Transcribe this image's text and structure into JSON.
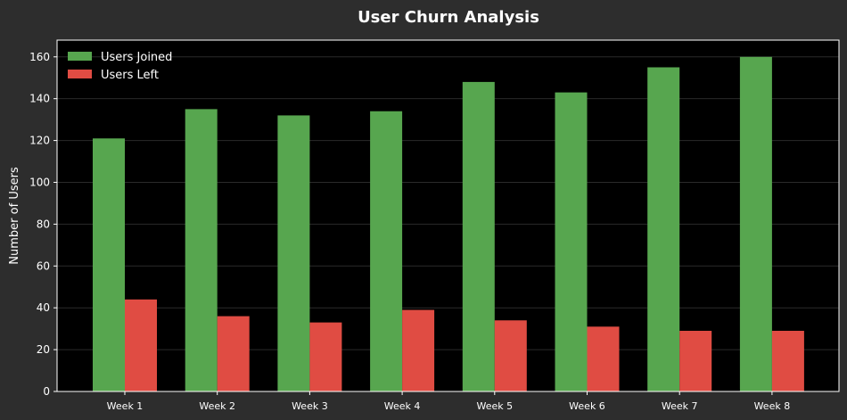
{
  "chart_data": {
    "type": "bar",
    "title": "User Churn Analysis",
    "xlabel": "",
    "ylabel": "Number of Users",
    "categories": [
      "Week 1",
      "Week 2",
      "Week 3",
      "Week 4",
      "Week 5",
      "Week 6",
      "Week 7",
      "Week 8"
    ],
    "series": [
      {
        "name": "Users Joined",
        "color": "#57a64f",
        "values": [
          121,
          135,
          132,
          134,
          148,
          143,
          155,
          160
        ]
      },
      {
        "name": "Users Left",
        "color": "#e04c43",
        "values": [
          44,
          36,
          33,
          39,
          34,
          31,
          29,
          29
        ]
      }
    ],
    "ylim": [
      0,
      168
    ],
    "yticks": [
      0,
      20,
      40,
      60,
      80,
      100,
      120,
      140,
      160
    ],
    "grid": true,
    "legend_position": "top-left",
    "colors": {
      "background": "#2d2d2d",
      "plot_background": "#000000",
      "text": "#ffffff",
      "grid": "#2a2a2a",
      "axis": "#ffffff"
    }
  }
}
